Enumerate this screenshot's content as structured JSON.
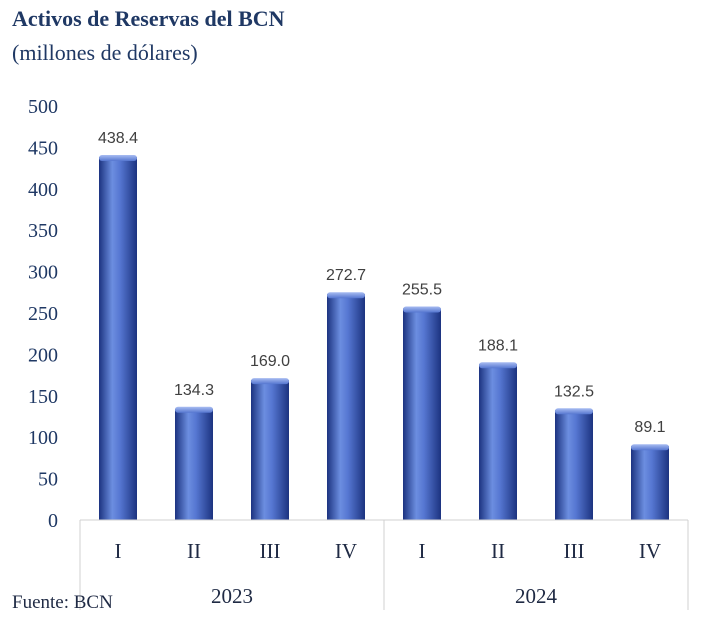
{
  "title": "Activos de Reservas del BCN",
  "subtitle": "(millones de dólares)",
  "source": "Fuente: BCN",
  "colors": {
    "bar": "#4a6cc8",
    "bar_dark": "#203a8a",
    "bar_light": "#8aa4ea",
    "text": "#1f3864"
  },
  "chart_data": {
    "type": "bar",
    "title": "Activos de Reservas del BCN",
    "subtitle": "(millones de dólares)",
    "categories": [
      "I",
      "II",
      "III",
      "IV",
      "I",
      "II",
      "III",
      "IV"
    ],
    "groups": [
      {
        "label": "2023",
        "start": 0,
        "end": 3
      },
      {
        "label": "2024",
        "start": 4,
        "end": 7
      }
    ],
    "values": [
      438.4,
      134.3,
      169.0,
      272.7,
      255.5,
      188.1,
      132.5,
      89.1
    ],
    "value_labels": [
      "438.4",
      "134.3",
      "169.0",
      "272.7",
      "255.5",
      "188.1",
      "132.5",
      "89.1"
    ],
    "ylim": [
      0,
      500
    ],
    "yticks": [
      "0",
      "50",
      "100",
      "150",
      "200",
      "250",
      "300",
      "350",
      "400",
      "450",
      "500"
    ],
    "grid": false,
    "legend": "none"
  }
}
